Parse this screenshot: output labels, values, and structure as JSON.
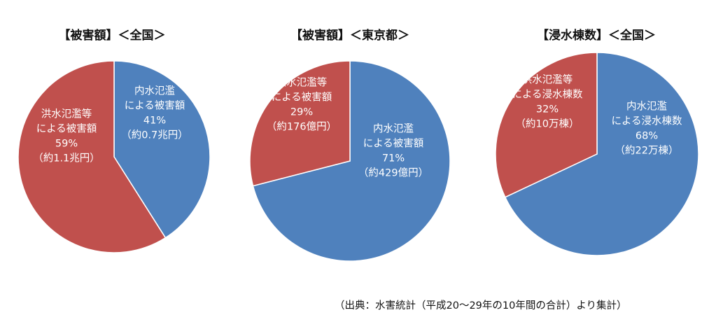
{
  "colors": {
    "flood": "#c0504d",
    "inland": "#4f81bd"
  },
  "chart_data": [
    {
      "type": "pie",
      "title": "【被害額】＜全国＞",
      "slices": [
        {
          "name": "内水氾濫による被害額",
          "value": 41,
          "color": "#4f81bd",
          "label_lines": [
            "内水氾濫",
            "による被害額",
            "41%",
            "（約0.7兆円）"
          ]
        },
        {
          "name": "洪水氾濫等による被害額",
          "value": 59,
          "color": "#c0504d",
          "label_lines": [
            "洪水氾濫等",
            "による被害額",
            "59%",
            "（約1.1兆円）"
          ]
        }
      ]
    },
    {
      "type": "pie",
      "title": "【被害額】＜東京都＞",
      "slices": [
        {
          "name": "内水氾濫による被害額",
          "value": 71,
          "color": "#4f81bd",
          "label_lines": [
            "内水氾濫",
            "による被害額",
            "71%",
            "（約429億円）"
          ]
        },
        {
          "name": "洪水氾濫等による被害額",
          "value": 29,
          "color": "#c0504d",
          "label_lines": [
            "洪水氾濫等",
            "による被害額",
            "29%",
            "（約176億円）"
          ]
        }
      ]
    },
    {
      "type": "pie",
      "title": "【浸水棟数】＜全国＞",
      "slices": [
        {
          "name": "内水氾濫による浸水棟数",
          "value": 68,
          "color": "#4f81bd",
          "label_lines": [
            "内水氾濫",
            "による浸水棟数",
            "68%",
            "（約22万棟）"
          ]
        },
        {
          "name": "洪水氾濫等による浸水棟数",
          "value": 32,
          "color": "#c0504d",
          "label_lines": [
            "洪水氾濫等",
            "による浸水棟数",
            "32%",
            "（約10万棟）"
          ]
        }
      ]
    }
  ],
  "source_note": "（出典：水害統計（平成20～29年の10年間の合計）より集計）"
}
